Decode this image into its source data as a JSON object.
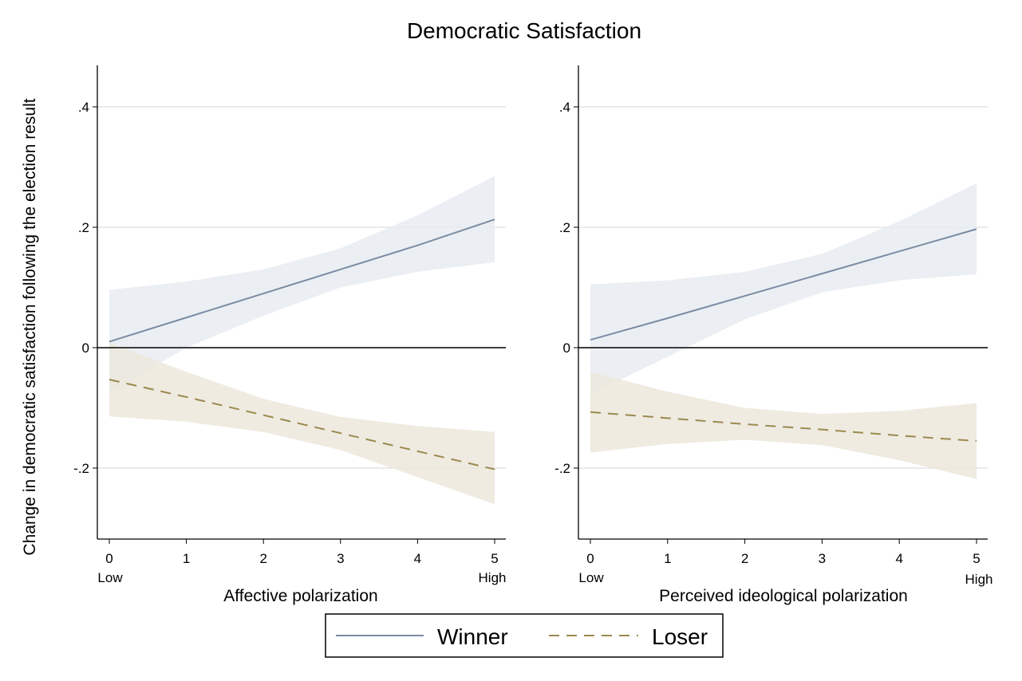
{
  "title": "Democratic Satisfaction",
  "y_axis_label": "Change in democratic satisfaction following the election result",
  "legend": {
    "winner": "Winner",
    "loser": "Loser"
  },
  "colors": {
    "winner_line": "#7a8ca3",
    "winner_band": "#e8ecf1",
    "loser_line": "#9b8a4f",
    "loser_band": "#ece8dc",
    "zero_line": "#222222",
    "grid": "#e4e4e4"
  },
  "chart_data": [
    {
      "type": "line",
      "xlabel": "Affective polarization",
      "ylabel": "Change in democratic satisfaction following the election result",
      "xlim": [
        0,
        5
      ],
      "ylim": [
        -0.32,
        0.47
      ],
      "x": [
        0,
        1,
        2,
        3,
        4,
        5
      ],
      "x_tick_labels": [
        "0",
        "1",
        "2",
        "3",
        "4",
        "5"
      ],
      "x_end_labels": {
        "low": "Low",
        "high": "High"
      },
      "y_ticks": [
        0.4,
        0.2,
        0,
        -0.2
      ],
      "y_tick_labels": [
        ".4",
        ".2",
        "0",
        "-.2"
      ],
      "grid": true,
      "series": [
        {
          "name": "Winner",
          "style": "solid",
          "values": [
            0.01,
            0.05,
            0.09,
            0.13,
            0.17,
            0.213
          ],
          "ci_lower": [
            -0.075,
            0.0,
            0.053,
            0.1,
            0.126,
            0.142
          ],
          "ci_upper": [
            0.096,
            0.11,
            0.13,
            0.165,
            0.22,
            0.285
          ]
        },
        {
          "name": "Loser",
          "style": "dashed",
          "values": [
            -0.053,
            -0.082,
            -0.112,
            -0.142,
            -0.172,
            -0.202
          ],
          "ci_lower": [
            -0.114,
            -0.123,
            -0.14,
            -0.17,
            -0.215,
            -0.26
          ],
          "ci_upper": [
            0.008,
            -0.04,
            -0.085,
            -0.115,
            -0.13,
            -0.14
          ]
        }
      ]
    },
    {
      "type": "line",
      "xlabel": "Perceived ideological polarization",
      "ylabel": "",
      "xlim": [
        0,
        5
      ],
      "ylim": [
        -0.32,
        0.47
      ],
      "x": [
        0,
        1,
        2,
        3,
        4,
        5
      ],
      "x_tick_labels": [
        "0",
        "1",
        "2",
        "3",
        "4",
        "5"
      ],
      "x_end_labels": {
        "low": "Low",
        "high": "High"
      },
      "y_ticks": [
        0.4,
        0.2,
        0,
        -0.2
      ],
      "y_tick_labels": [
        ".4",
        ".2",
        "0",
        "-.2"
      ],
      "grid": true,
      "series": [
        {
          "name": "Winner",
          "style": "solid",
          "values": [
            0.013,
            0.049,
            0.086,
            0.123,
            0.16,
            0.197
          ],
          "ci_lower": [
            -0.078,
            -0.015,
            0.047,
            0.092,
            0.112,
            0.122
          ],
          "ci_upper": [
            0.105,
            0.112,
            0.126,
            0.156,
            0.21,
            0.273
          ]
        },
        {
          "name": "Loser",
          "style": "dashed",
          "values": [
            -0.107,
            -0.117,
            -0.127,
            -0.136,
            -0.146,
            -0.155
          ],
          "ci_lower": [
            -0.174,
            -0.16,
            -0.153,
            -0.162,
            -0.187,
            -0.218
          ],
          "ci_upper": [
            -0.04,
            -0.073,
            -0.1,
            -0.11,
            -0.105,
            -0.092
          ]
        }
      ]
    }
  ]
}
